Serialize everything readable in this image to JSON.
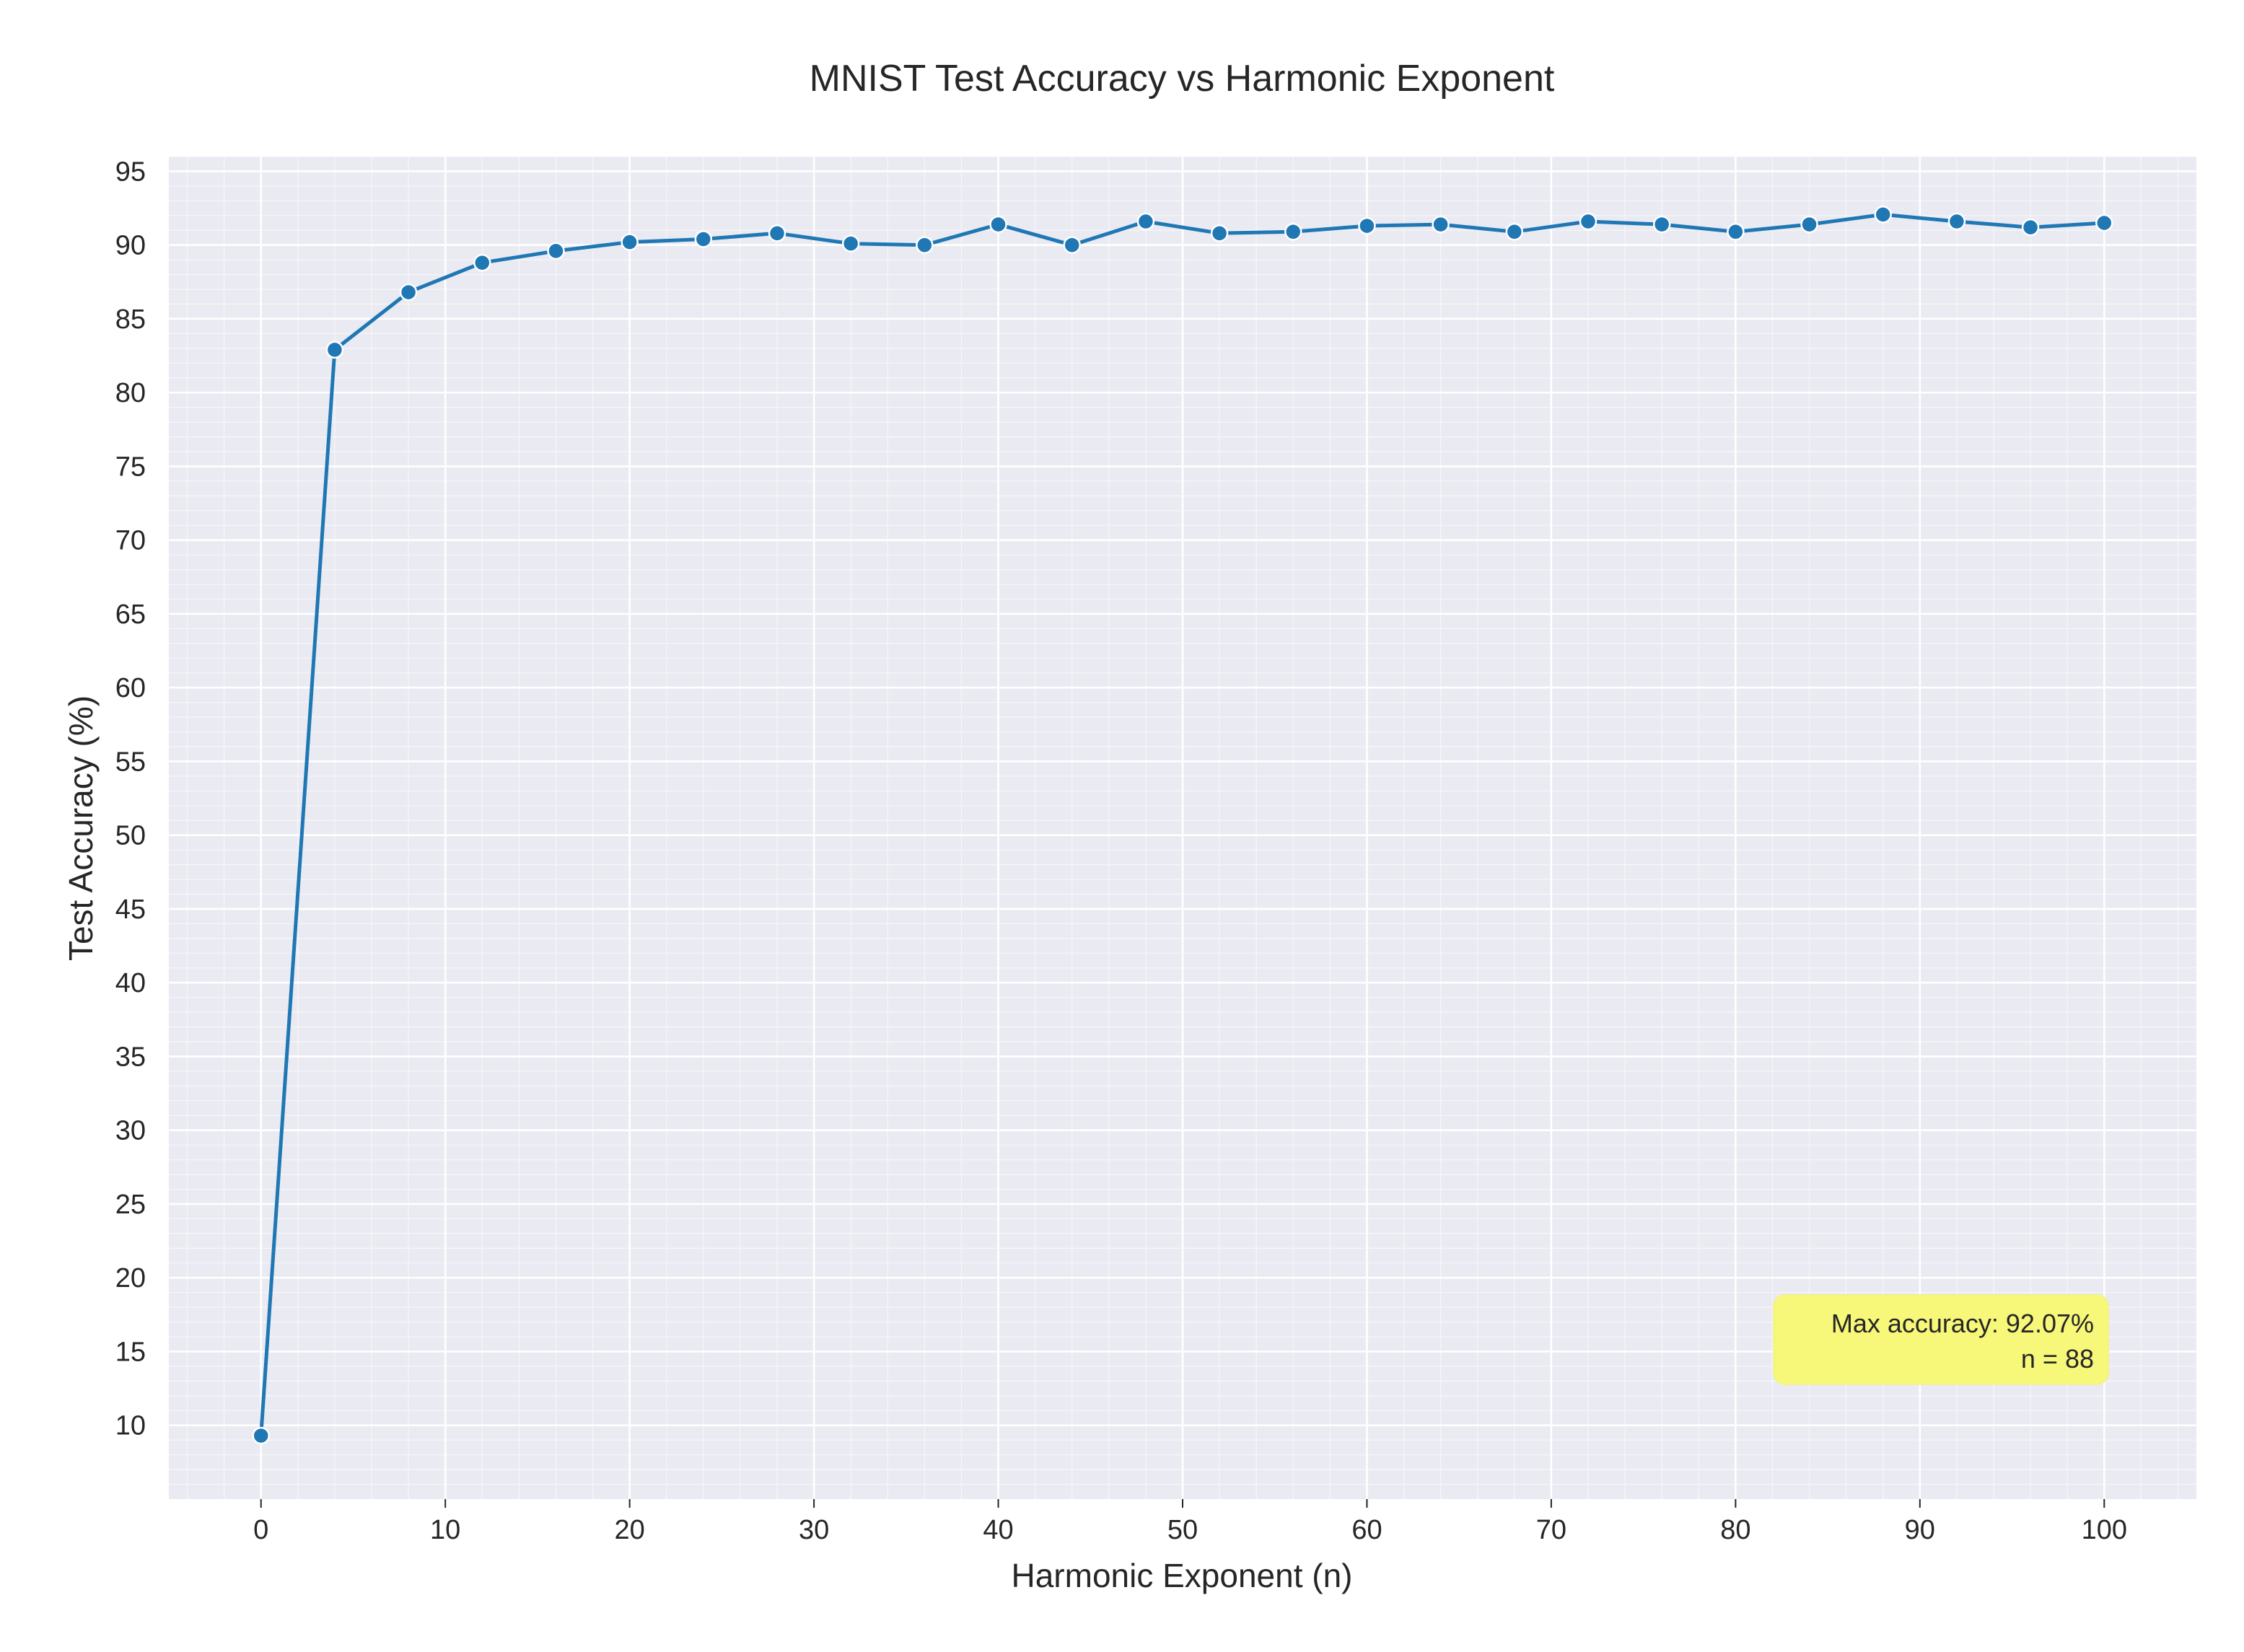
{
  "chart_data": {
    "type": "line",
    "title": "MNIST Test Accuracy vs Harmonic Exponent",
    "xlabel": "Harmonic Exponent (n)",
    "ylabel": "Test Accuracy (%)",
    "xlim": [
      -5,
      105
    ],
    "ylim": [
      5,
      96
    ],
    "x_ticks": [
      0,
      10,
      20,
      30,
      40,
      50,
      60,
      70,
      80,
      90,
      100
    ],
    "y_ticks": [
      10,
      15,
      20,
      25,
      30,
      35,
      40,
      45,
      50,
      55,
      60,
      65,
      70,
      75,
      80,
      85,
      90,
      95
    ],
    "grid": true,
    "minor_grid": true,
    "series": [
      {
        "color": "#1f77b4",
        "x": [
          0,
          4,
          8,
          12,
          16,
          20,
          24,
          28,
          32,
          36,
          40,
          44,
          48,
          52,
          56,
          60,
          64,
          68,
          72,
          76,
          80,
          84,
          88,
          92,
          96,
          100
        ],
        "y": [
          9.3,
          82.9,
          86.8,
          88.8,
          89.6,
          90.2,
          90.4,
          90.8,
          90.1,
          90.0,
          91.4,
          90.0,
          91.6,
          90.8,
          90.9,
          91.3,
          91.4,
          90.9,
          91.6,
          91.4,
          90.9,
          91.4,
          92.07,
          91.6,
          91.2,
          91.5
        ]
      }
    ],
    "annotation": {
      "line1": "Max accuracy: 92.07%",
      "line2": "n = 88",
      "background": "#f7f77a",
      "placement": "bottom-right"
    }
  },
  "colors": {
    "plot_background": "#eaeaf2",
    "grid": "#ffffff",
    "line": "#1f77b4",
    "text": "#262626"
  }
}
